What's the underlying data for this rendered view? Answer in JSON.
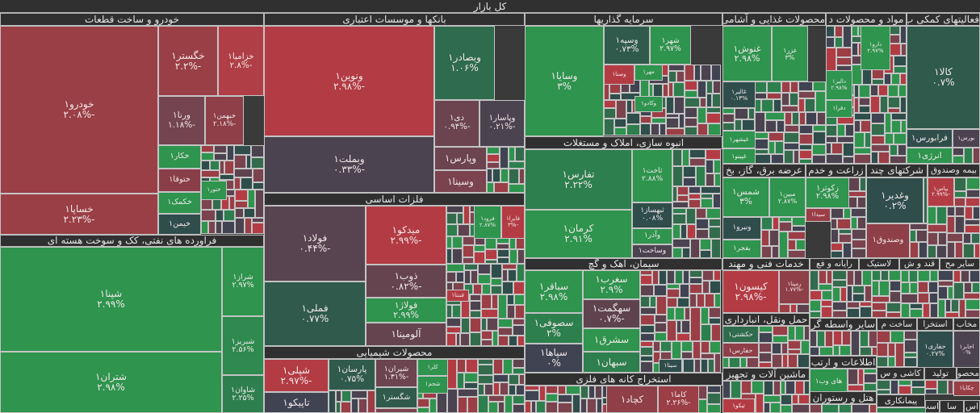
{
  "title": "کل بازار",
  "colors": {
    "strong_red": "#b33c44",
    "red": "#9b3e46",
    "dark_red": "#7b434e",
    "neutral": "#4b4350",
    "dark_slate": "#2f4d4b",
    "dark_green": "#336b4d",
    "green": "#2e944e",
    "bright_green": "#2dc653",
    "header": "#303030"
  },
  "sectors": [
    {
      "name": "خودرو و ساخت قطعات",
      "stocks": [
        {
          "symbol": "خودرو۱",
          "change": "-۲.۰۸%"
        },
        {
          "symbol": "خساپا۱",
          "change": "-۲.۲۳%"
        },
        {
          "symbol": "خگستر۱",
          "change": "-۲.۲%"
        },
        {
          "symbol": "خزامیا۱",
          "change": "-۲.۸%"
        },
        {
          "symbol": "ورنا۱",
          "change": "-۱.۱۸%"
        },
        {
          "symbol": "خبهمن۱",
          "change": "-۲.۱۸%"
        },
        {
          "symbol": "خکار۱"
        },
        {
          "symbol": "ختوقا۱"
        },
        {
          "symbol": "خکمک۱"
        },
        {
          "symbol": "خیمن۱"
        },
        {
          "symbol": "ختور۱"
        }
      ]
    },
    {
      "name": "فراورده های نفتی، کک و سوخت هسته ای",
      "stocks": [
        {
          "symbol": "شپنا۱",
          "change": "۲.۹۹%"
        },
        {
          "symbol": "شتران۱",
          "change": "۲.۹۸%"
        },
        {
          "symbol": "شراز۱",
          "change": "۲.۹۷%"
        },
        {
          "symbol": "شبریز۱",
          "change": "۲.۵۶%"
        },
        {
          "symbol": "شاوان۱",
          "change": "۲.۲۵%"
        }
      ]
    },
    {
      "name": "بانکها و موسسات اعتباری",
      "stocks": [
        {
          "symbol": "ونوین۱",
          "change": "-۲.۹۸%"
        },
        {
          "symbol": "وبملت۱",
          "change": "-۰.۳۳%"
        },
        {
          "symbol": "وبصادر۱",
          "change": "۱.۰۶%"
        },
        {
          "symbol": "دی۱",
          "change": "-۰.۹۴%"
        },
        {
          "symbol": "وپاسار۱",
          "change": "-۰.۲۱%"
        },
        {
          "symbol": "وپارس۱"
        },
        {
          "symbol": "وسینا۱"
        }
      ]
    },
    {
      "name": "فلزات اساسی",
      "stocks": [
        {
          "symbol": "فولاد۱",
          "change": "-۰.۴۴%"
        },
        {
          "symbol": "فملی۱",
          "change": "۰.۷۷%"
        },
        {
          "symbol": "میدکو۱",
          "change": "-۲.۹۹%"
        },
        {
          "symbol": "ذوب۱",
          "change": "-۰.۸۲%"
        },
        {
          "symbol": "فولاژ۱",
          "change": "۲.۹۹%"
        },
        {
          "symbol": "آلومینا۱"
        },
        {
          "symbol": "فرود۱",
          "change": "۲.۸۷%"
        },
        {
          "symbol": "فایرا۱",
          "change": "-۳%"
        },
        {
          "symbol": "فبنتا۱"
        }
      ]
    },
    {
      "name": "محصولات شیمیایی",
      "stocks": [
        {
          "symbol": "شپلی۱",
          "change": "-۲.۹۷%"
        },
        {
          "symbol": "تاپیکو۱"
        },
        {
          "symbol": "پارسان۱",
          "change": "۰.۷۵%"
        },
        {
          "symbol": "شیران۱",
          "change": "-۱.۳۱%"
        },
        {
          "symbol": "شگستر۱"
        },
        {
          "symbol": "کلر۱"
        },
        {
          "symbol": "شجم۱"
        }
      ]
    },
    {
      "name": "سرمایه گذاریها",
      "stocks": [
        {
          "symbol": "وسایا۱",
          "change": "۳%"
        },
        {
          "symbol": "وسپه۱",
          "change": "۰.۷۳%"
        },
        {
          "symbol": "شهر۱",
          "change": "۲.۹۷%"
        },
        {
          "symbol": "وصنا۱"
        },
        {
          "symbol": "مهر۱"
        },
        {
          "symbol": "وکادو۱"
        }
      ]
    },
    {
      "name": "انبوه سازی، املاک و مستغلات",
      "stocks": [
        {
          "symbol": "تفارس۱",
          "change": "۲.۲۲%"
        },
        {
          "symbol": "کرمان۱",
          "change": "۲.۹۱%"
        },
        {
          "symbol": "ثاخت۱",
          "change": "۲.۸۸%"
        },
        {
          "symbol": "ثبهساز۱",
          "change": "۰.۰۸%"
        },
        {
          "symbol": "وآذر۱"
        },
        {
          "symbol": "وساخت۱"
        }
      ]
    },
    {
      "name": "سیمان، آهک و گچ",
      "stocks": [
        {
          "symbol": "سباقر۱",
          "change": "۲.۹۸%"
        },
        {
          "symbol": "سصوفی۱",
          "change": "۲%"
        },
        {
          "symbol": "سپاها۱",
          "change": "۰%"
        },
        {
          "symbol": "سغرب۱",
          "change": "۲.۹%"
        },
        {
          "symbol": "سهگمت۱",
          "change": "-۰.۷%"
        },
        {
          "symbol": "سشرق۱"
        },
        {
          "symbol": "سبهان۱"
        },
        {
          "symbol": "سیتا۱"
        }
      ]
    },
    {
      "name": "استخراج کانه های فلزی",
      "stocks": [
        {
          "symbol": "کچاد۱"
        },
        {
          "symbol": "کاما۱",
          "change": "-۲.۲۶%"
        }
      ]
    },
    {
      "name": "محصولات غذایی و آشامی",
      "stocks": [
        {
          "symbol": "غنوش۱",
          "change": "۲.۹۸%"
        },
        {
          "symbol": "غزر۱",
          "change": "۳%"
        },
        {
          "symbol": "غالبر۱",
          "change": "۰.۱۳%"
        },
        {
          "symbol": "غیشهر۱"
        },
        {
          "symbol": "غپینو۱"
        }
      ]
    },
    {
      "name": "مواد و محصولات د",
      "stocks": [
        {
          "symbol": "دارو۱",
          "change": "۲.۹۷%"
        },
        {
          "symbol": "دالبر۱",
          "change": "۲.۹۸%"
        },
        {
          "symbol": "دفرا۱"
        }
      ]
    },
    {
      "name": "فعالیتهای کمکی ب",
      "stocks": [
        {
          "symbol": "کالا۱",
          "change": "۰.۷%"
        },
        {
          "symbol": "فرابورس۱"
        },
        {
          "symbol": "بورس۱"
        },
        {
          "symbol": "انرژی۱"
        }
      ]
    },
    {
      "name": "عرضه برق، گاز، بخ",
      "stocks": [
        {
          "symbol": "شمس۱",
          "change": "۳%"
        },
        {
          "symbol": "مبین۱",
          "change": "۲.۸۷%"
        },
        {
          "symbol": "ونیرو۱"
        },
        {
          "symbol": "بفجر۱"
        }
      ]
    },
    {
      "name": "زراعت و خدم",
      "stocks": [
        {
          "symbol": "زکوثر۱",
          "change": "۲.۹۸%"
        },
        {
          "symbol": "سیدا۱"
        }
      ]
    },
    {
      "name": "شرکتهای چند",
      "stocks": [
        {
          "symbol": "وغدیر۱",
          "change": "۰.۲%"
        },
        {
          "symbol": "وصندوق۱"
        }
      ]
    },
    {
      "name": "بیمه وصندوق",
      "stocks": [
        {
          "symbol": "بپاس۱",
          "change": "-۲.۹۹%"
        }
      ]
    },
    {
      "name": "خدمات فنی و مهند",
      "stocks": [
        {
          "symbol": "کیسون۱",
          "change": "-۲.۹۸%"
        },
        {
          "symbol": "رمپنا۱",
          "change": "-۱.۷۷%"
        }
      ]
    },
    {
      "name": "رایانه و فع",
      "stocks": []
    },
    {
      "name": "لاستیک",
      "stocks": []
    },
    {
      "name": "قند و ش",
      "stocks": []
    },
    {
      "name": "سایر مح",
      "stocks": []
    },
    {
      "name": "حمل ونقل، انبارداری",
      "stocks": [
        {
          "symbol": "حکشتی۱"
        },
        {
          "symbol": "حفارس۱"
        }
      ]
    },
    {
      "name": "سایر واسطه گر",
      "stocks": []
    },
    {
      "name": "ساخت م",
      "stocks": []
    },
    {
      "name": "استخرا",
      "stocks": [
        {
          "symbol": "حفاری۱",
          "change": "۰.۲۷%"
        }
      ]
    },
    {
      "name": "مخاب",
      "stocks": [
        {
          "symbol": "اخابر۱",
          "change": "۰%"
        }
      ]
    },
    {
      "name": "اطلاعات و ارتب",
      "stocks": [
        {
          "symbol": "های وب۱"
        }
      ]
    },
    {
      "name": "ماشین آلات و تجهیز",
      "stocks": [
        {
          "symbol": "تیکو۱"
        }
      ]
    },
    {
      "name": "کاشی و س",
      "stocks": []
    },
    {
      "name": "تولید",
      "stocks": []
    },
    {
      "name": "محصو",
      "stocks": [
        {
          "symbol": "چکاپا۱"
        }
      ]
    },
    {
      "name": "هتل و رستوران",
      "stocks": []
    },
    {
      "name": "پیمانکاری",
      "stocks": []
    },
    {
      "name": "اس",
      "stocks": []
    },
    {
      "name": "سا",
      "stocks": []
    },
    {
      "name": "است",
      "stocks": []
    }
  ]
}
